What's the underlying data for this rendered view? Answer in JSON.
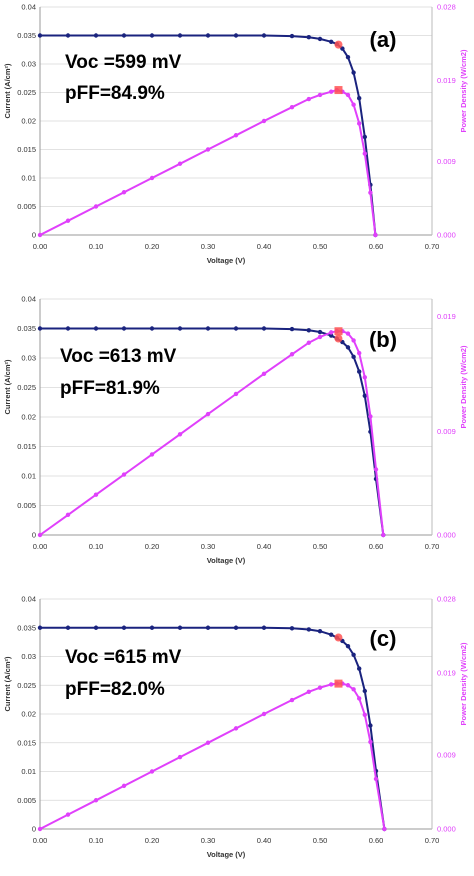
{
  "colors": {
    "current": "#1a237e",
    "power": "#e040fb",
    "mpp": "#ff5252",
    "gridline": "#d8d8d8",
    "axis_right": "#e040fb"
  },
  "chart_data": [
    {
      "type": "line",
      "panel_label": "(a)",
      "annotations": [
        "Voc =599 mV",
        "pFF=84.9%"
      ],
      "xlabel": "Voltage (V)",
      "ylabel": "Current (A/cm²)",
      "y2label": "Power Density (W/cm2)",
      "xlim": [
        0,
        0.7
      ],
      "ylim": [
        0,
        0.04
      ],
      "x_ticks": [
        "0.00",
        "0.10",
        "0.20",
        "0.30",
        "0.40",
        "0.50",
        "0.60",
        "0.70"
      ],
      "y_ticks": [
        "0",
        "0.005",
        "0.01",
        "0.015",
        "0.02",
        "0.025",
        "0.03",
        "0.035",
        "0.04"
      ],
      "y2_ticks": [
        "0.000",
        "0.009",
        "0.019",
        "0.028"
      ],
      "y2lim": [
        0,
        0.028
      ],
      "series": [
        {
          "name": "Current",
          "x": [
            0.0,
            0.05,
            0.1,
            0.15,
            0.2,
            0.25,
            0.3,
            0.35,
            0.4,
            0.45,
            0.48,
            0.5,
            0.52,
            0.53,
            0.54,
            0.55,
            0.56,
            0.57,
            0.58,
            0.59,
            0.599
          ],
          "y": [
            0.035,
            0.035,
            0.035,
            0.035,
            0.035,
            0.035,
            0.035,
            0.035,
            0.035,
            0.0349,
            0.0347,
            0.0344,
            0.0339,
            0.0335,
            0.0327,
            0.0312,
            0.0285,
            0.024,
            0.0172,
            0.0088,
            0.0
          ]
        },
        {
          "name": "Power Density",
          "x": [
            0.0,
            0.05,
            0.1,
            0.15,
            0.2,
            0.25,
            0.3,
            0.35,
            0.4,
            0.45,
            0.48,
            0.5,
            0.52,
            0.53,
            0.54,
            0.55,
            0.56,
            0.57,
            0.58,
            0.59,
            0.599
          ],
          "y": [
            0.0,
            0.00175,
            0.0035,
            0.00525,
            0.007,
            0.00875,
            0.0105,
            0.01225,
            0.014,
            0.0157,
            0.0167,
            0.0172,
            0.0176,
            0.0178,
            0.0176,
            0.0172,
            0.016,
            0.0137,
            0.01,
            0.0052,
            0.0
          ]
        }
      ],
      "mpp": {
        "x": 0.533,
        "current": 0.0334,
        "power": 0.0178
      }
    },
    {
      "type": "line",
      "panel_label": "(b)",
      "annotations": [
        "Voc =613 mV",
        "pFF=81.9%"
      ],
      "xlabel": "Voltage (V)",
      "ylabel": "Current (A/cm²)",
      "y2label": "Power Density (W/cm2)",
      "xlim": [
        0,
        0.7
      ],
      "ylim": [
        0,
        0.04
      ],
      "x_ticks": [
        "0.00",
        "0.10",
        "0.20",
        "0.30",
        "0.40",
        "0.50",
        "0.60",
        "0.70"
      ],
      "y_ticks": [
        "0",
        "0.005",
        "0.01",
        "0.015",
        "0.02",
        "0.025",
        "0.03",
        "0.035",
        "0.04"
      ],
      "y2_ticks": [
        "0.000",
        "0.009",
        "0.019"
      ],
      "y2lim": [
        0,
        0.0205
      ],
      "series": [
        {
          "name": "Current",
          "x": [
            0.0,
            0.05,
            0.1,
            0.15,
            0.2,
            0.25,
            0.3,
            0.35,
            0.4,
            0.45,
            0.48,
            0.5,
            0.52,
            0.53,
            0.54,
            0.55,
            0.56,
            0.57,
            0.58,
            0.59,
            0.6,
            0.613
          ],
          "y": [
            0.035,
            0.035,
            0.035,
            0.035,
            0.035,
            0.035,
            0.035,
            0.035,
            0.035,
            0.0349,
            0.0347,
            0.0344,
            0.0338,
            0.0333,
            0.0327,
            0.0318,
            0.0302,
            0.0277,
            0.0236,
            0.0175,
            0.0095,
            0.0
          ]
        },
        {
          "name": "Power Density",
          "x": [
            0.0,
            0.05,
            0.1,
            0.15,
            0.2,
            0.25,
            0.3,
            0.35,
            0.4,
            0.45,
            0.48,
            0.5,
            0.52,
            0.53,
            0.54,
            0.55,
            0.56,
            0.57,
            0.58,
            0.59,
            0.6,
            0.613
          ],
          "y": [
            0.0,
            0.00175,
            0.0035,
            0.00525,
            0.007,
            0.00875,
            0.0105,
            0.01225,
            0.014,
            0.0157,
            0.0167,
            0.0172,
            0.0176,
            0.0177,
            0.0177,
            0.0175,
            0.0169,
            0.0158,
            0.0137,
            0.0103,
            0.0057,
            0.0
          ]
        }
      ],
      "mpp": {
        "x": 0.533,
        "current": 0.0333,
        "power": 0.0177
      }
    },
    {
      "type": "line",
      "panel_label": "(c)",
      "annotations": [
        "Voc =615 mV",
        "pFF=82.0%"
      ],
      "xlabel": "Voltage (V)",
      "ylabel": "Current (A/cm²)",
      "y2label": "Power Density (W/cm2)",
      "xlim": [
        0,
        0.7
      ],
      "ylim": [
        0,
        0.04
      ],
      "x_ticks": [
        "0.00",
        "0.10",
        "0.20",
        "0.30",
        "0.40",
        "0.50",
        "0.60",
        "0.70"
      ],
      "y_ticks": [
        "0",
        "0.005",
        "0.01",
        "0.015",
        "0.02",
        "0.025",
        "0.03",
        "0.035",
        "0.04"
      ],
      "y2_ticks": [
        "0.000",
        "0.009",
        "0.019",
        "0.028"
      ],
      "y2lim": [
        0,
        0.028
      ],
      "series": [
        {
          "name": "Current",
          "x": [
            0.0,
            0.05,
            0.1,
            0.15,
            0.2,
            0.25,
            0.3,
            0.35,
            0.4,
            0.45,
            0.48,
            0.5,
            0.52,
            0.53,
            0.54,
            0.55,
            0.56,
            0.57,
            0.58,
            0.59,
            0.6,
            0.615
          ],
          "y": [
            0.035,
            0.035,
            0.035,
            0.035,
            0.035,
            0.035,
            0.035,
            0.035,
            0.035,
            0.0349,
            0.0347,
            0.0344,
            0.0338,
            0.0333,
            0.0327,
            0.0318,
            0.0303,
            0.0279,
            0.024,
            0.018,
            0.0101,
            0.0
          ]
        },
        {
          "name": "Power Density",
          "x": [
            0.0,
            0.05,
            0.1,
            0.15,
            0.2,
            0.25,
            0.3,
            0.35,
            0.4,
            0.45,
            0.48,
            0.5,
            0.52,
            0.53,
            0.54,
            0.55,
            0.56,
            0.57,
            0.58,
            0.59,
            0.6,
            0.615
          ],
          "y": [
            0.0,
            0.00175,
            0.0035,
            0.00525,
            0.007,
            0.00875,
            0.0105,
            0.01225,
            0.014,
            0.0157,
            0.0167,
            0.0172,
            0.0176,
            0.0177,
            0.0177,
            0.0175,
            0.017,
            0.0159,
            0.0139,
            0.0106,
            0.0061,
            0.0
          ]
        }
      ],
      "mpp": {
        "x": 0.533,
        "current": 0.0333,
        "power": 0.0177
      }
    }
  ]
}
